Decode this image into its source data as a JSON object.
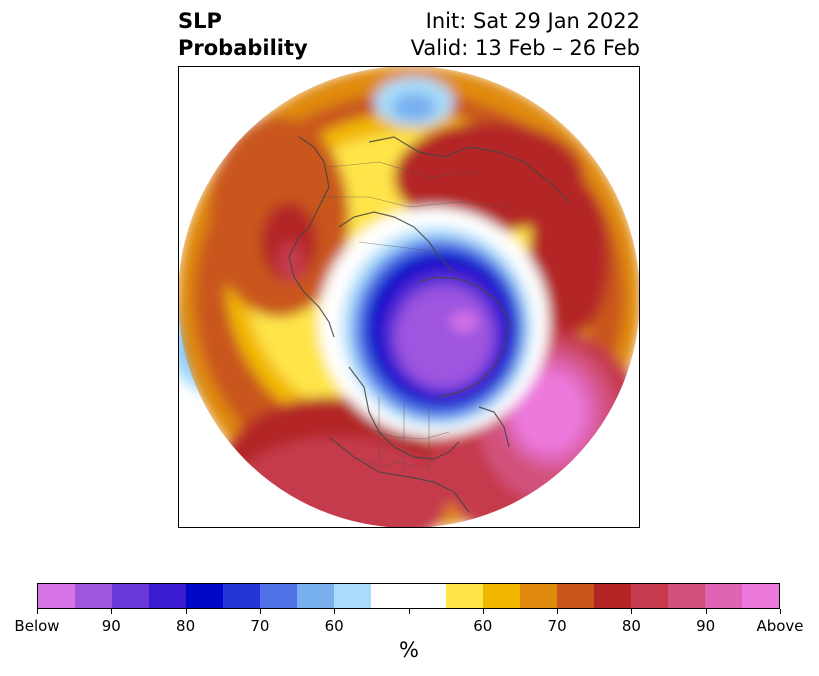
{
  "header": {
    "title_line1": "SLP",
    "title_line2": "Probability",
    "init_text": "Init: Sat 29 Jan 2022",
    "valid_text": "Valid: 13 Feb – 26 Feb"
  },
  "map": {
    "projection": "north-polar-stereographic",
    "features": [
      "probability-shading",
      "coastlines",
      "country-borders",
      "state-borders"
    ]
  },
  "colorbar": {
    "segments": [
      {
        "color": "#d673e6"
      },
      {
        "color": "#9e55e0"
      },
      {
        "color": "#6a3ad8"
      },
      {
        "color": "#3b1bd0"
      },
      {
        "color": "#0008c8"
      },
      {
        "color": "#2436d8"
      },
      {
        "color": "#4f72e6"
      },
      {
        "color": "#78b0f0"
      },
      {
        "color": "#a9dcfa"
      },
      {
        "color": "#ffffff"
      },
      {
        "color": "#ffffff"
      },
      {
        "color": "#ffe54a"
      },
      {
        "color": "#f2b800"
      },
      {
        "color": "#e08a10"
      },
      {
        "color": "#c9571a"
      },
      {
        "color": "#b42626"
      },
      {
        "color": "#c53a4c"
      },
      {
        "color": "#d2517a"
      },
      {
        "color": "#df65b4"
      },
      {
        "color": "#ec79dc"
      }
    ],
    "labels": [
      "Below",
      "90",
      "80",
      "70",
      "60",
      "60",
      "70",
      "80",
      "90",
      "Above"
    ],
    "unit": "%"
  }
}
